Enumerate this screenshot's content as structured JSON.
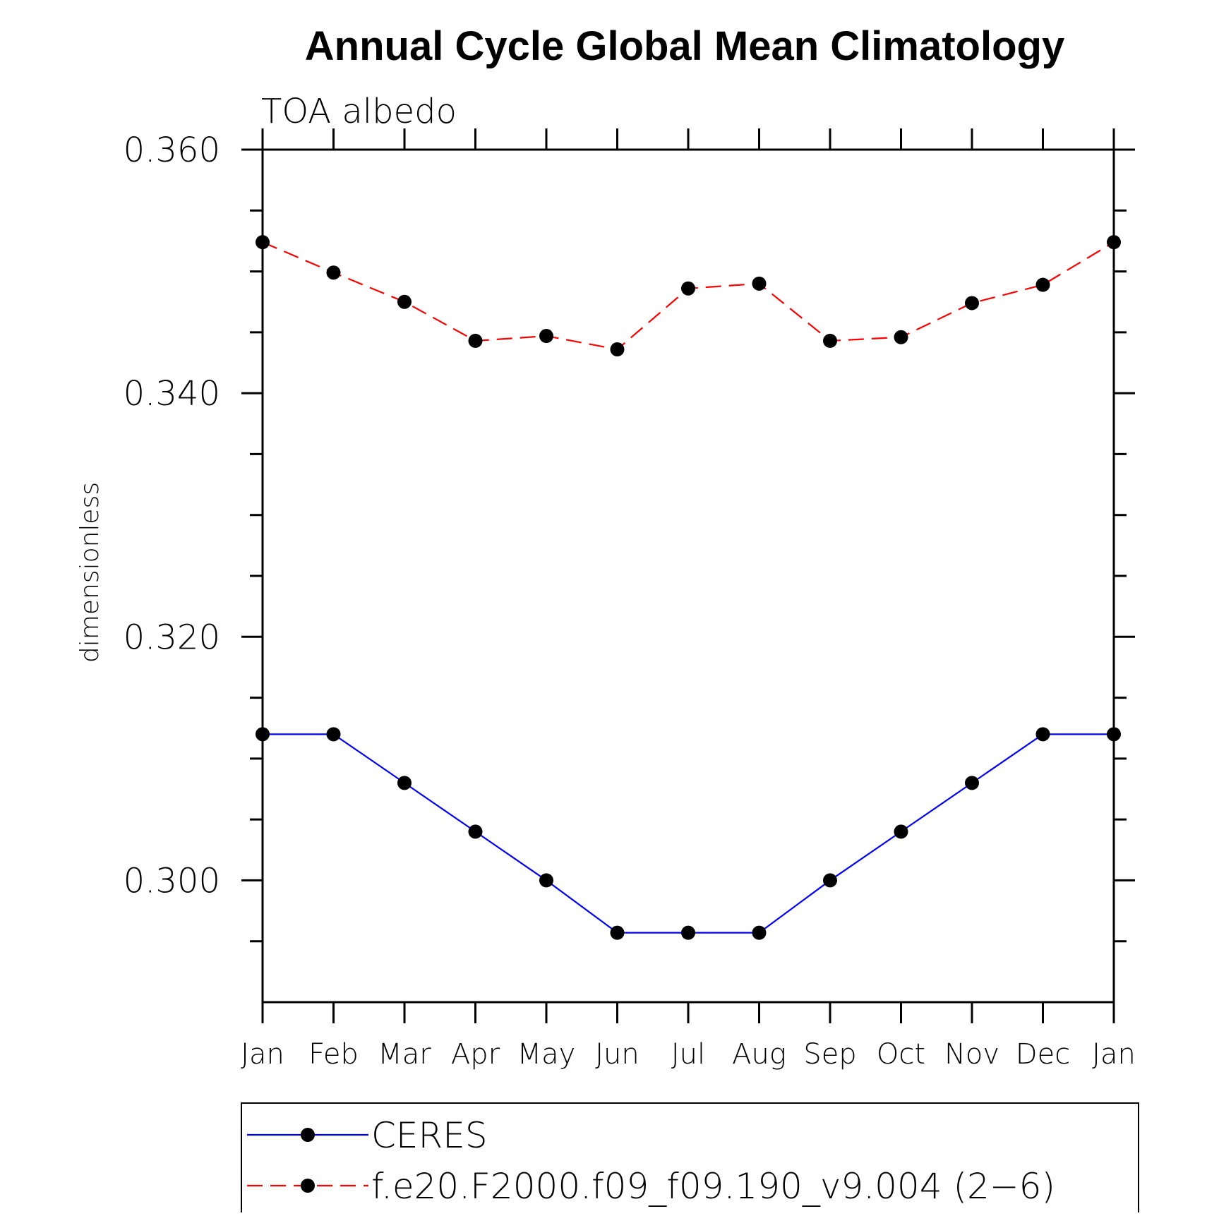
{
  "chart_data": {
    "type": "line",
    "title": "Annual Cycle Global Mean Climatology",
    "subtitle": "TOA albedo",
    "ylabel": "dimensionless",
    "xlabel": "",
    "categories": [
      "Jan",
      "Feb",
      "Mar",
      "Apr",
      "May",
      "Jun",
      "Jul",
      "Aug",
      "Sep",
      "Oct",
      "Nov",
      "Dec",
      "Jan"
    ],
    "ylim": [
      0.29,
      0.36
    ],
    "yticks": [
      0.3,
      0.32,
      0.34,
      0.36
    ],
    "ytick_labels": [
      "0.300",
      "0.320",
      "0.340",
      "0.360"
    ],
    "grid": false,
    "legend_position": "bottom",
    "series": [
      {
        "name": "CERES",
        "color": "#0000ff",
        "line_style": "solid",
        "marker": "filled-circle",
        "values": [
          0.312,
          0.312,
          0.308,
          0.304,
          0.3,
          0.2957,
          0.2957,
          0.2957,
          0.3,
          0.304,
          0.308,
          0.312,
          0.312
        ]
      },
      {
        "name": "f.e20.F2000.f09_f09.190_v9.004 (2−6)",
        "color": "#ff0000",
        "line_style": "dashed",
        "marker": "filled-circle",
        "values": [
          0.3524,
          0.3499,
          0.3475,
          0.3443,
          0.3447,
          0.3436,
          0.3486,
          0.349,
          0.3443,
          0.3446,
          0.3474,
          0.3489,
          0.3524
        ]
      }
    ]
  }
}
